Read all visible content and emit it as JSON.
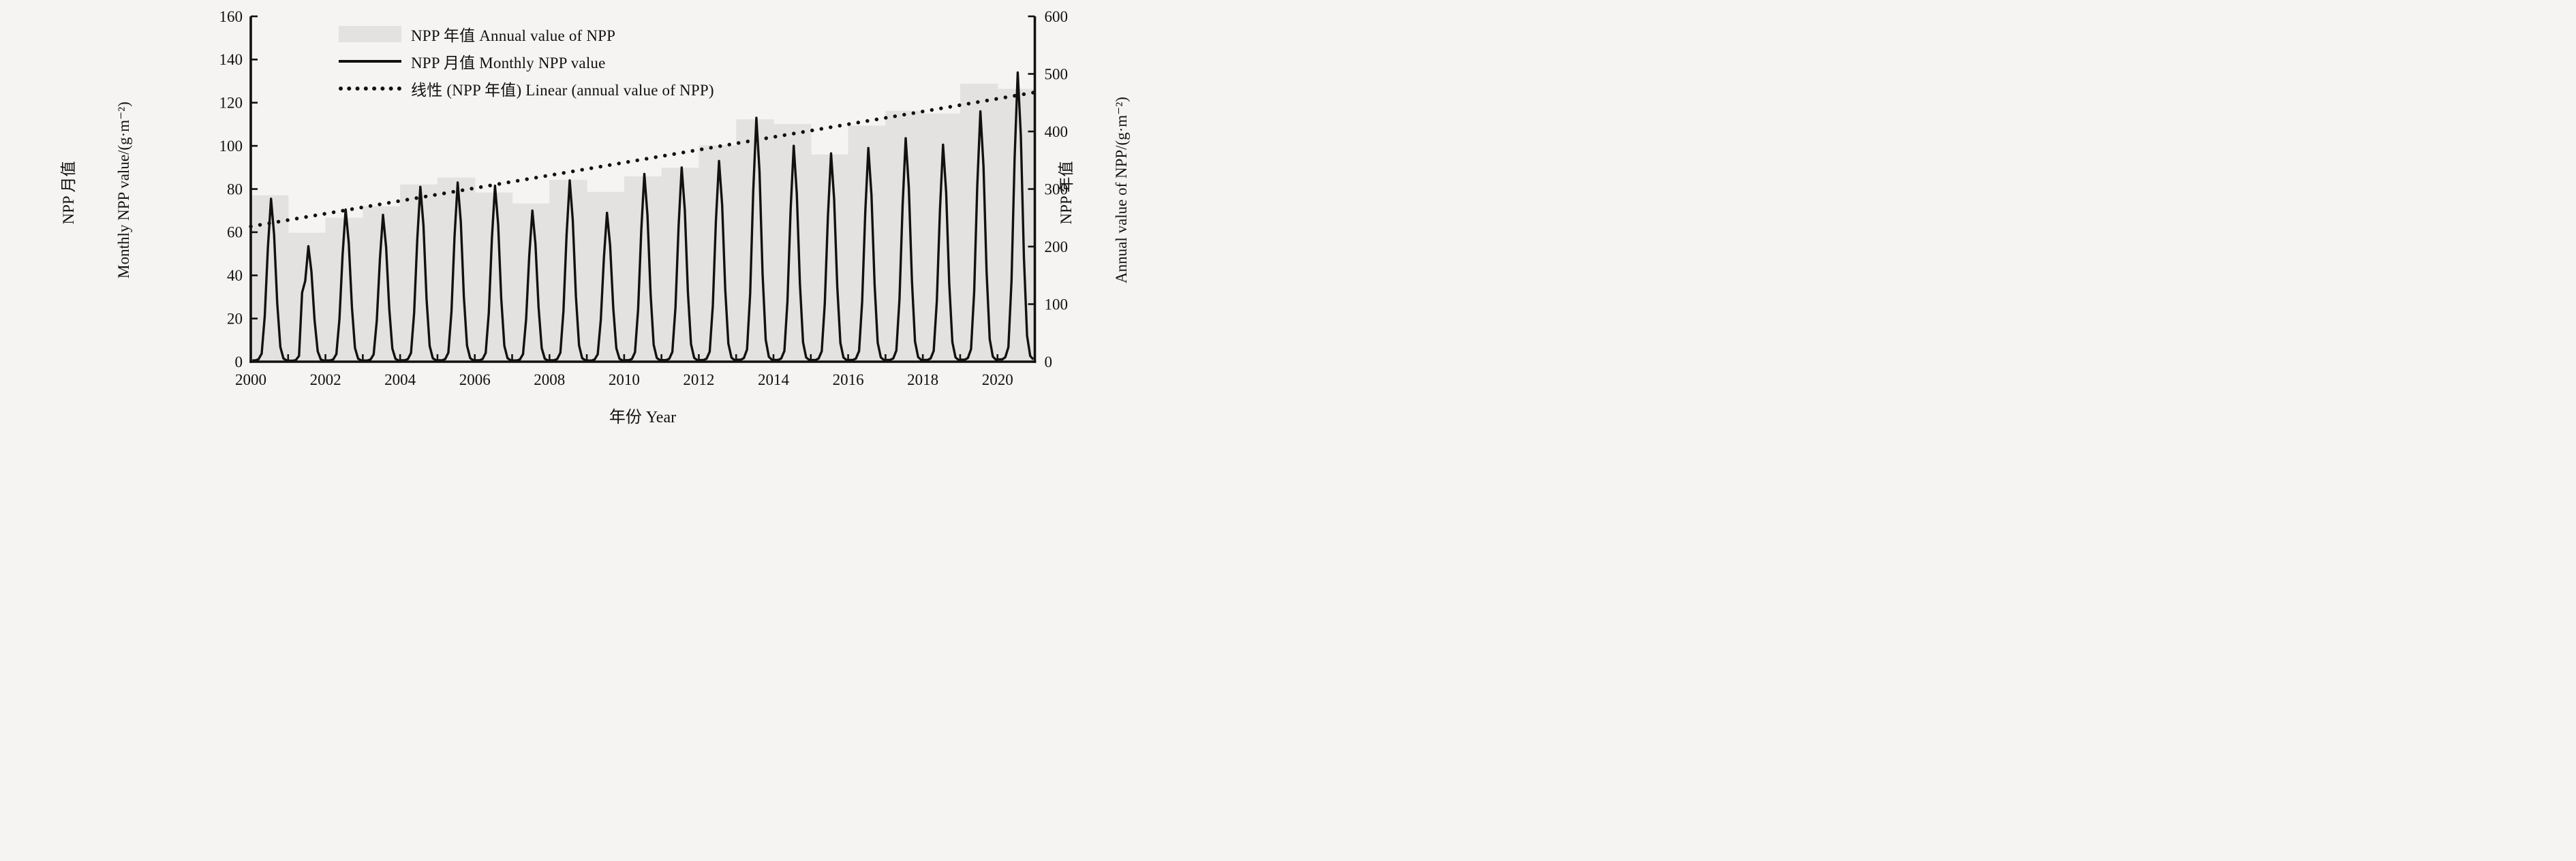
{
  "figure": {
    "x_axis_title": "年份 Year",
    "left_axis_title_zh": "NPP 月值",
    "left_axis_title_en": "Monthly NPP value/(g·m⁻²)",
    "right_axis_title_zh": "NPP 年值",
    "right_axis_title_en": "Annual value of NPP/(g·m⁻²)"
  },
  "legend": {
    "annual_label": "NPP 年值 Annual value of NPP",
    "monthly_label": "NPP 月值 Monthly NPP value",
    "linear_label": "线性 (NPP 年值) Linear (annual value of NPP)"
  },
  "chart_data": {
    "type": "bar+line combo",
    "title": "",
    "x_axis": {
      "label": "年份 Year",
      "min": 2000,
      "max": 2021,
      "minor_tick_step_years": 1,
      "label_step_years": 2,
      "tick_labels": [
        "2000",
        "2002",
        "2004",
        "2006",
        "2008",
        "2010",
        "2012",
        "2014",
        "2016",
        "2018",
        "2020"
      ]
    },
    "left_axis": {
      "label": "NPP 月值 Monthly NPP value/(g·m⁻²)",
      "min": 0,
      "max": 160,
      "step": 20,
      "tick_labels": [
        "0",
        "20",
        "40",
        "60",
        "80",
        "100",
        "120",
        "140",
        "160"
      ]
    },
    "right_axis": {
      "label": "NPP 年值 Annual value of NPP/(g·m⁻²)",
      "min": 0,
      "max": 600,
      "step": 100,
      "tick_labels": [
        "0",
        "100",
        "200",
        "300",
        "400",
        "500",
        "600"
      ]
    },
    "grid": "off",
    "legend_position": "inside-top-left",
    "colors": {
      "bar_fill": "#e3e2e0",
      "line": "#111111",
      "trend": "#111111",
      "background": "#f5f4f2"
    },
    "series": [
      {
        "name": "NPP 年值 Annual value of NPP",
        "type": "bar",
        "axis": "right",
        "years": [
          2000,
          2001,
          2002,
          2003,
          2004,
          2005,
          2006,
          2007,
          2008,
          2009,
          2010,
          2011,
          2012,
          2013,
          2014,
          2015,
          2016,
          2017,
          2018,
          2019,
          2020
        ],
        "values": [
          289,
          224,
          250,
          270,
          308,
          320,
          294,
          275,
          316,
          295,
          322,
          337,
          376,
          421,
          413,
          360,
          410,
          436,
          431,
          483,
          474
        ]
      },
      {
        "name": "NPP 月值 Monthly NPP value",
        "type": "line",
        "axis": "left",
        "years": [
          2000,
          2001,
          2002,
          2003,
          2004,
          2005,
          2006,
          2007,
          2008,
          2009,
          2010,
          2011,
          2012,
          2013,
          2014,
          2015,
          2016,
          2017,
          2018,
          2019,
          2020
        ],
        "annual_peak_values": [
          75.5,
          53.5,
          70.5,
          68,
          81,
          83,
          81.5,
          70,
          84,
          69,
          87,
          90,
          93,
          113,
          100,
          96.5,
          99,
          103.5,
          100.5,
          116,
          134
        ],
        "monthly_shape_fractions": [
          0.008,
          0.008,
          0.015,
          0.05,
          0.28,
          0.7,
          1.0,
          0.78,
          0.36,
          0.09,
          0.02,
          0.008
        ],
        "monthly_overrides": {
          "2001-5": 32
        }
      },
      {
        "name": "线性 (NPP 年值) Linear (annual value of NPP)",
        "type": "trend",
        "axis": "right",
        "start": {
          "year": 2000,
          "value": 235
        },
        "end": {
          "year": 2021,
          "value": 468
        }
      }
    ]
  }
}
